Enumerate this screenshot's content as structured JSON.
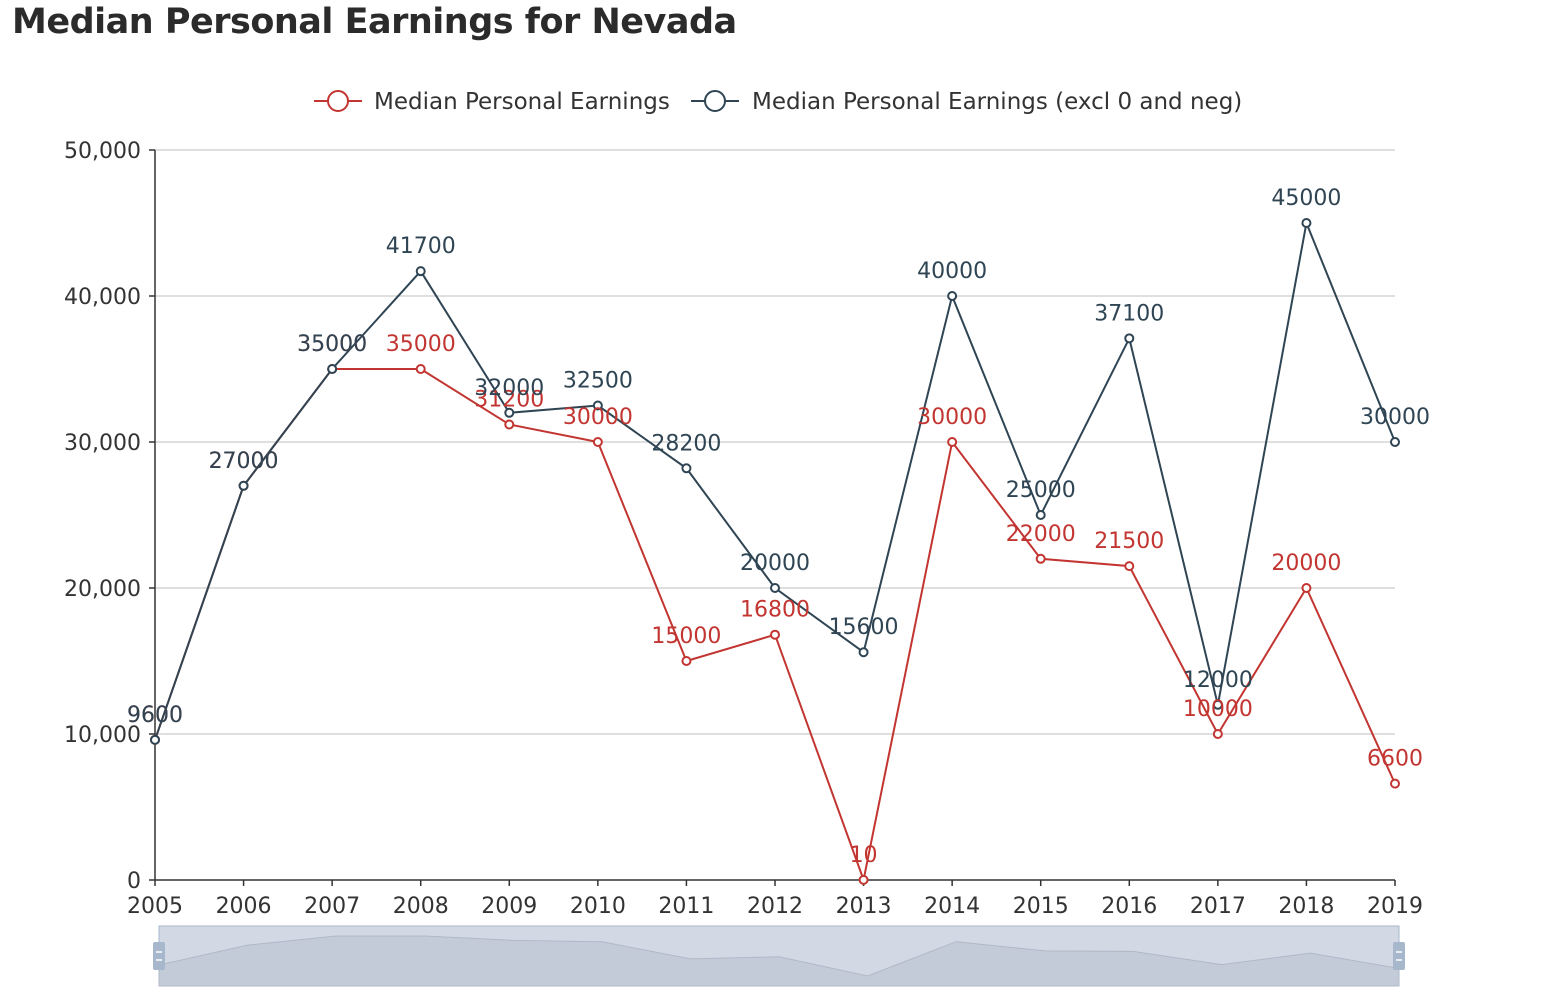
{
  "title": "Median Personal Earnings for Nevada",
  "colors": {
    "series_red": "#c23531",
    "series_dark": "#2f4554",
    "grid": "#cccccc",
    "axis": "#333333",
    "zoom_fill": "#d2d9e5",
    "zoom_handle": "#a7b7cc"
  },
  "chart_data": {
    "type": "line",
    "title": "Median Personal Earnings for Nevada",
    "x": [
      "2005",
      "2006",
      "2007",
      "2008",
      "2009",
      "2010",
      "2011",
      "2012",
      "2013",
      "2014",
      "2015",
      "2016",
      "2017",
      "2018",
      "2019"
    ],
    "ylim": [
      0,
      50000
    ],
    "yticks": [
      0,
      10000,
      20000,
      30000,
      40000,
      50000
    ],
    "ytick_labels": [
      "0",
      "10,000",
      "20,000",
      "30,000",
      "40,000",
      "50,000"
    ],
    "grid": true,
    "legend_position": "top-center",
    "series": [
      {
        "name": "Median Personal Earnings",
        "values": [
          9600,
          27000,
          35000,
          35000,
          31200,
          30000,
          15000,
          16800,
          10,
          30000,
          22000,
          21500,
          10000,
          20000,
          6600
        ]
      },
      {
        "name": "Median Personal Earnings (excl 0 and neg)",
        "values": [
          9600,
          27000,
          35000,
          41700,
          32000,
          32500,
          28200,
          20000,
          15600,
          40000,
          25000,
          37100,
          12000,
          45000,
          30000
        ]
      }
    ],
    "data_zoom": {
      "start_percent": 0,
      "end_percent": 100
    }
  }
}
